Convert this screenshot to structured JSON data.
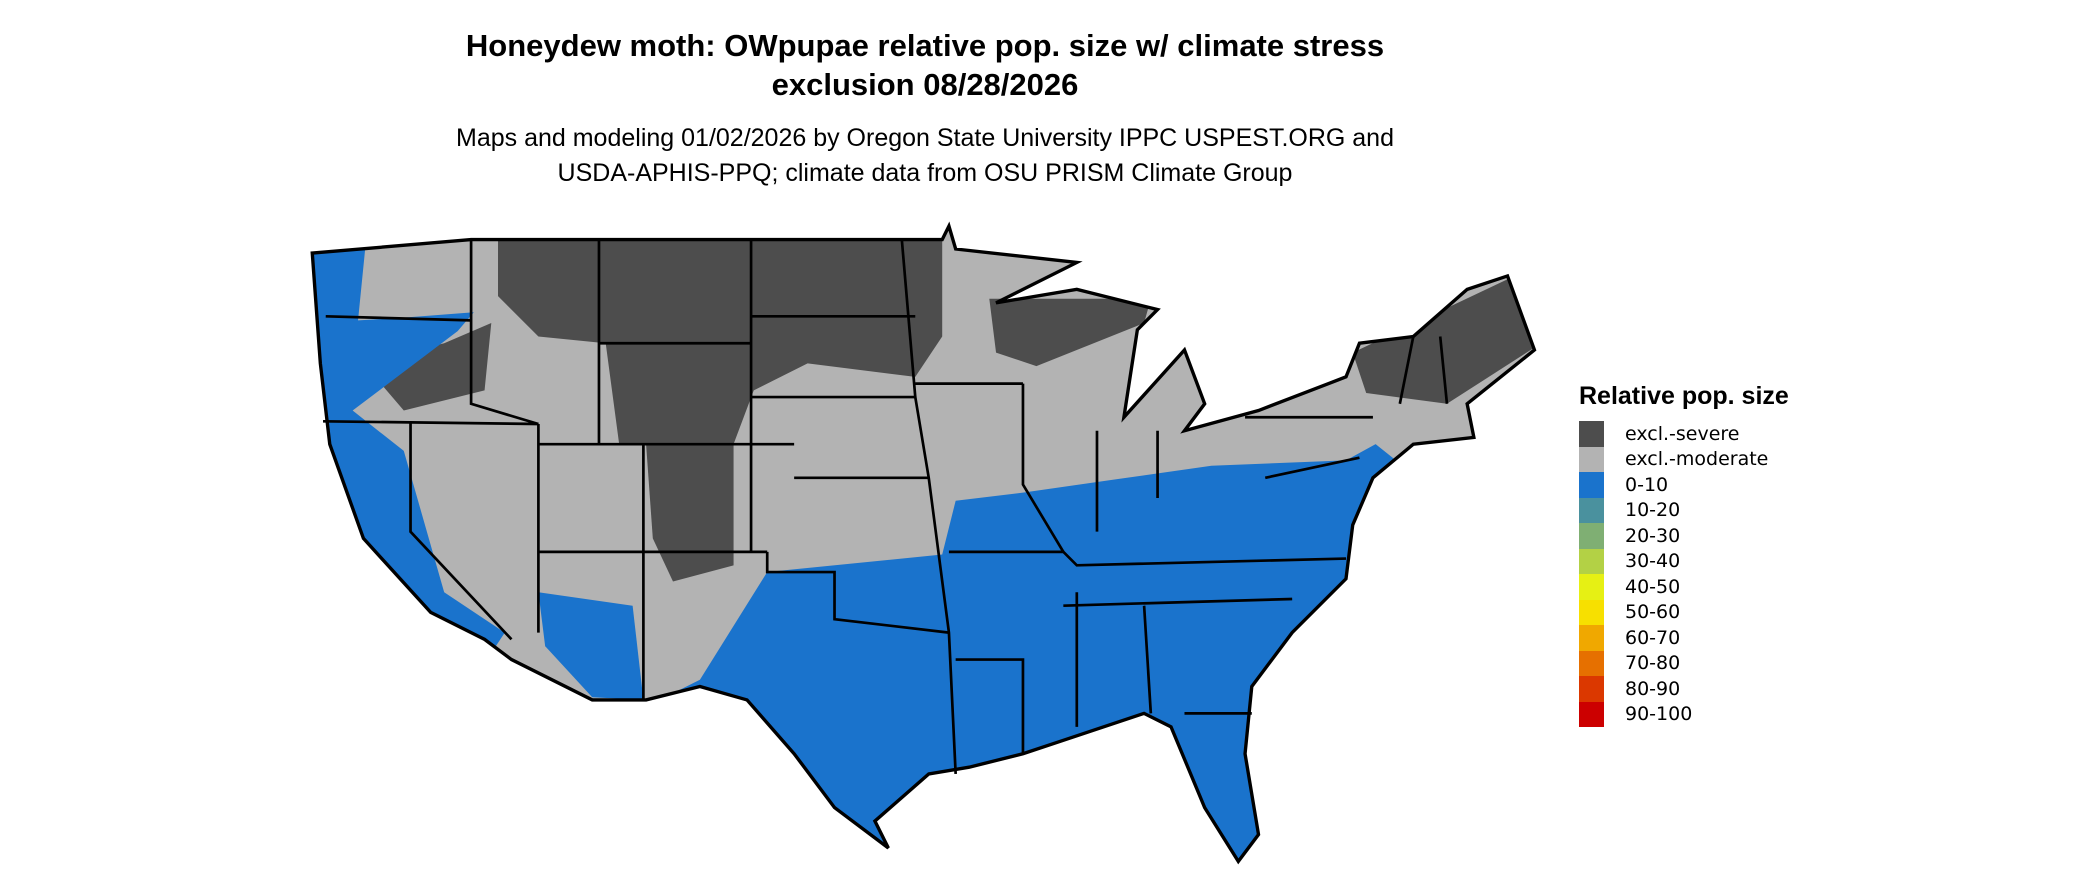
{
  "title": {
    "line1": "Honeydew moth: OWpupae relative pop. size w/ climate stress",
    "line2": "exclusion 08/28/2026"
  },
  "subtitle": {
    "line1": "Maps and modeling 01/02/2026 by Oregon State University IPPC USPEST.ORG and",
    "line2": "USDA-APHIS-PPQ; climate data from OSU PRISM Climate Group"
  },
  "map": {
    "region": "Contiguous United States",
    "colors": {
      "severe": "#4d4d4d",
      "moderate": "#b3b3b3",
      "low": "#1a73cc",
      "border": "#000000"
    }
  },
  "legend": {
    "title": "Relative pop. size",
    "items": [
      {
        "label": "excl.-severe",
        "color": "#4d4d4d"
      },
      {
        "label": "excl.-moderate",
        "color": "#b3b3b3"
      },
      {
        "label": "0-10",
        "color": "#1a73cc"
      },
      {
        "label": "10-20",
        "color": "#4a919e"
      },
      {
        "label": "20-30",
        "color": "#7faf73"
      },
      {
        "label": "30-40",
        "color": "#b3d145"
      },
      {
        "label": "40-50",
        "color": "#e6f014"
      },
      {
        "label": "50-60",
        "color": "#f7e000"
      },
      {
        "label": "60-70",
        "color": "#f0a800"
      },
      {
        "label": "70-80",
        "color": "#e67000"
      },
      {
        "label": "80-90",
        "color": "#db3800"
      },
      {
        "label": "90-100",
        "color": "#cc0000"
      }
    ]
  }
}
